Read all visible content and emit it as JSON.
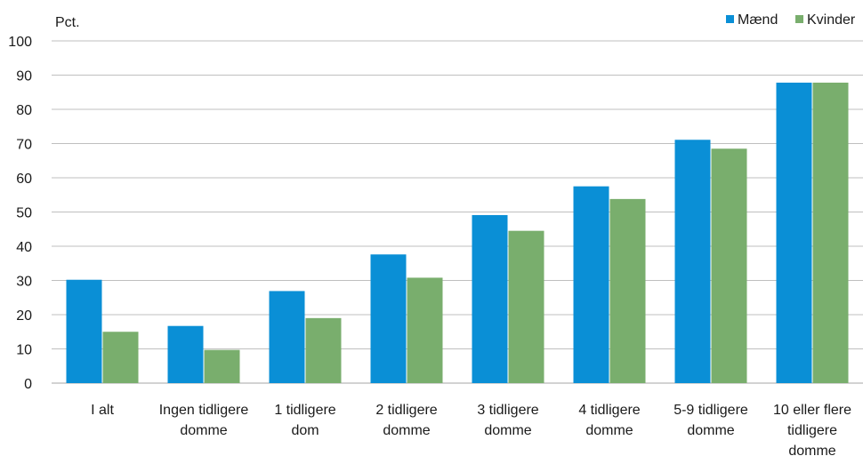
{
  "chart_data": {
    "type": "bar",
    "ylabel": "Pct.",
    "ylim": [
      0,
      100
    ],
    "yticks": [
      0,
      10,
      20,
      30,
      40,
      50,
      60,
      70,
      80,
      90,
      100
    ],
    "grid": true,
    "legend_position": "top-right",
    "categories": [
      [
        "I alt"
      ],
      [
        "Ingen tidligere",
        "domme"
      ],
      [
        "1 tidligere",
        "dom"
      ],
      [
        "2 tidligere",
        "domme"
      ],
      [
        "3 tidligere",
        "domme"
      ],
      [
        "4 tidligere",
        "domme"
      ],
      [
        "5-9 tidligere",
        "domme"
      ],
      [
        "10 eller flere",
        "tidligere",
        "domme"
      ]
    ],
    "series": [
      {
        "name": "Mænd",
        "color": "#0a8fd6",
        "values": [
          30.2,
          16.7,
          26.9,
          37.6,
          49.1,
          57.5,
          71.1,
          87.8
        ]
      },
      {
        "name": "Kvinder",
        "color": "#79ae6d",
        "values": [
          15.0,
          9.7,
          19.0,
          30.8,
          44.5,
          53.8,
          68.5,
          87.8
        ]
      }
    ]
  }
}
